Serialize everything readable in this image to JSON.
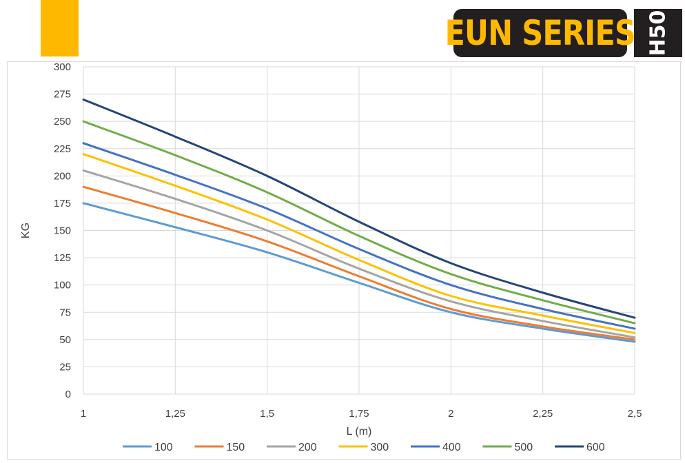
{
  "header": {
    "accent_color": "#FFB800",
    "brand": {
      "label": "EUN SERIES",
      "bg_color": "#231F20",
      "text_color": "#FFB800"
    },
    "model": {
      "label": "H50",
      "bg_color": "#231F20",
      "text_color": "#FFFFFF"
    }
  },
  "chart_data": {
    "type": "line",
    "title": "",
    "xlabel": "L (m)",
    "ylabel": "KG",
    "x": [
      1,
      1.25,
      1.5,
      1.75,
      2,
      2.25,
      2.5
    ],
    "x_tick_labels": [
      "1",
      "1,25",
      "1,5",
      "1,75",
      "2",
      "2,25",
      "2,5"
    ],
    "xlim": [
      1,
      2.5
    ],
    "ylim": [
      0,
      300
    ],
    "y_ticks": [
      0,
      25,
      50,
      75,
      100,
      125,
      150,
      175,
      200,
      225,
      250,
      275,
      300
    ],
    "grid": true,
    "legend_position": "bottom",
    "series": [
      {
        "name": "100",
        "color": "#5B9BD5",
        "values": [
          175,
          153,
          130,
          102,
          75,
          60,
          48
        ]
      },
      {
        "name": "150",
        "color": "#ED7D31",
        "values": [
          190,
          166,
          140,
          108,
          78,
          62,
          50
        ]
      },
      {
        "name": "200",
        "color": "#A5A5A5",
        "values": [
          205,
          179,
          150,
          115,
          85,
          67,
          52
        ]
      },
      {
        "name": "300",
        "color": "#FFC000",
        "values": [
          220,
          191,
          160,
          123,
          90,
          72,
          56
        ]
      },
      {
        "name": "400",
        "color": "#4472C4",
        "values": [
          230,
          201,
          170,
          133,
          100,
          78,
          60
        ]
      },
      {
        "name": "500",
        "color": "#70AD47",
        "values": [
          250,
          219,
          185,
          145,
          110,
          86,
          65
        ]
      },
      {
        "name": "600",
        "color": "#264478",
        "values": [
          270,
          236,
          200,
          158,
          120,
          93,
          70
        ]
      }
    ]
  }
}
